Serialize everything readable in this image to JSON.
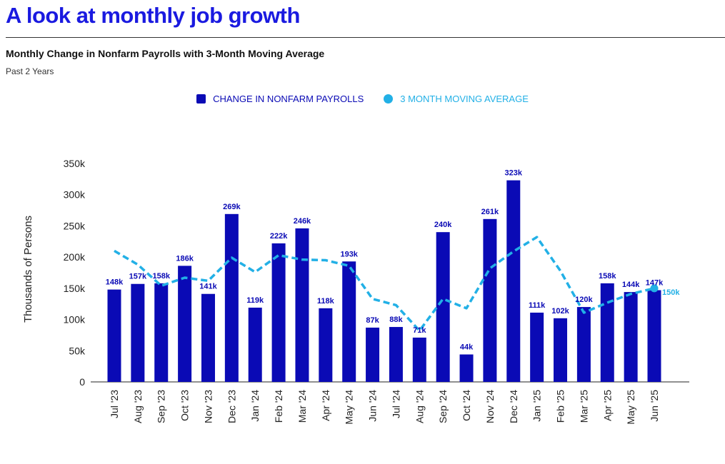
{
  "page": {
    "headline": "A look at monthly job growth",
    "subtitle": "Monthly Change in Nonfarm Payrolls with 3-Month Moving Average",
    "period": "Past 2 Years"
  },
  "colors": {
    "headline": "#1a1ae0",
    "bars": "#0a0ab5",
    "moving_average": "#22b0e6",
    "bar_label": "#0a0ab5"
  },
  "chart_data": {
    "type": "bar",
    "ylabel": "Thousands of Persons",
    "ylim": [
      0,
      350
    ],
    "yticks": [
      0,
      50,
      100,
      150,
      200,
      250,
      300,
      350
    ],
    "ytick_labels": [
      "0",
      "50k",
      "100k",
      "150k",
      "200k",
      "250k",
      "300k",
      "350k"
    ],
    "legend_position": "top-center",
    "grid": false,
    "categories": [
      "Jul '23",
      "Aug '23",
      "Sep '23",
      "Oct '23",
      "Nov '23",
      "Dec '23",
      "Jan '24",
      "Feb '24",
      "Mar '24",
      "Apr '24",
      "May '24",
      "Jun '24",
      "Jul '24",
      "Aug '24",
      "Sep '24",
      "Oct '24",
      "Nov '24",
      "Dec '24",
      "Jan '25",
      "Feb '25",
      "Mar '25",
      "Apr '25",
      "May '25",
      "Jun '25"
    ],
    "series": [
      {
        "name": "CHANGE IN NONFARM PAYROLLS",
        "type": "bar",
        "values": [
          148,
          157,
          158,
          186,
          141,
          269,
          119,
          222,
          246,
          118,
          193,
          87,
          88,
          71,
          240,
          44,
          261,
          323,
          111,
          102,
          120,
          158,
          144,
          147
        ],
        "labels": [
          "148k",
          "157k",
          "158k",
          "186k",
          "141k",
          "269k",
          "119k",
          "222k",
          "246k",
          "118k",
          "193k",
          "87k",
          "88k",
          "71k",
          "240k",
          "44k",
          "261k",
          "323k",
          "111k",
          "102k",
          "120k",
          "158k",
          "144k",
          "147k"
        ]
      },
      {
        "name": "3 MONTH MOVING AVERAGE",
        "type": "line",
        "style": "dashed",
        "values": [
          210,
          188,
          154,
          167,
          162,
          199,
          176,
          203,
          196,
          195,
          186,
          133,
          123,
          82,
          133,
          118,
          182,
          209,
          232,
          178,
          111,
          127,
          141,
          150
        ],
        "end_label": "150k"
      }
    ]
  }
}
